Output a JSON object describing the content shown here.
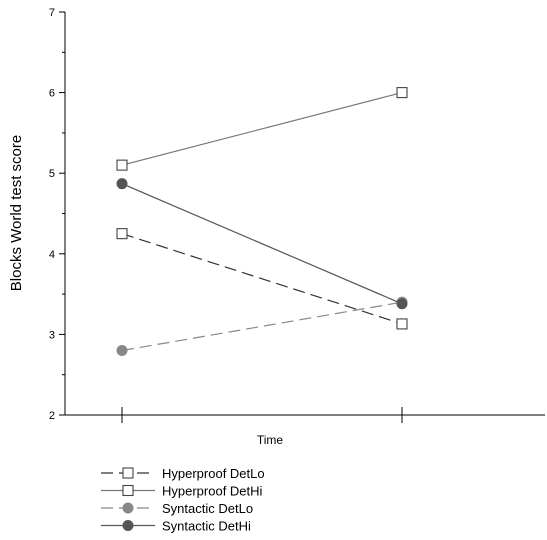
{
  "chart_data": {
    "type": "line",
    "title": "",
    "xlabel": "Time",
    "ylabel": "Blocks World test score",
    "x": [
      1,
      2
    ],
    "xtick_labels": [
      "",
      ""
    ],
    "ylim": [
      2,
      7
    ],
    "yticks": [
      2,
      3,
      4,
      5,
      6,
      7
    ],
    "ytick_labels": [
      "2",
      "3",
      "4",
      "5",
      "6",
      "7"
    ],
    "grid": false,
    "legend_position": "bottom-left",
    "series": [
      {
        "name": "Hyperproof DetLo",
        "values": [
          4.25,
          3.13
        ],
        "dashed": true,
        "marker": "square-open",
        "color": "#333333"
      },
      {
        "name": "Hyperproof DetHi",
        "values": [
          5.1,
          6.0
        ],
        "dashed": false,
        "marker": "square-open",
        "color": "#777777"
      },
      {
        "name": "Syntactic DetLo",
        "values": [
          2.8,
          3.4
        ],
        "dashed": true,
        "marker": "circle-filled",
        "color": "#888888"
      },
      {
        "name": "Syntactic DetHi",
        "values": [
          4.87,
          3.38
        ],
        "dashed": false,
        "marker": "circle-filled",
        "color": "#555555"
      }
    ]
  }
}
